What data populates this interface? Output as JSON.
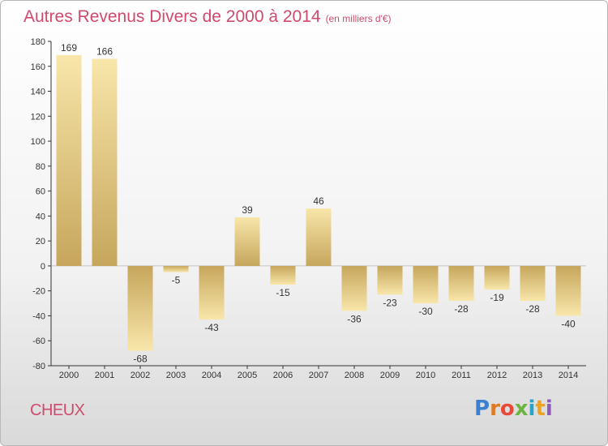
{
  "header": {
    "title": "Autres Revenus Divers de 2000 à 2014",
    "subtitle": "(en milliers d'€)"
  },
  "footer": {
    "city": "CHEUX",
    "logo_text": "Proxiti"
  },
  "chart_data": {
    "type": "bar",
    "title": "Autres Revenus Divers de 2000 à 2014",
    "subtitle": "(en milliers d'€)",
    "categories": [
      "2000",
      "2001",
      "2002",
      "2003",
      "2004",
      "2005",
      "2006",
      "2007",
      "2008",
      "2009",
      "2010",
      "2011",
      "2012",
      "2013",
      "2014"
    ],
    "values": [
      169,
      166,
      -68,
      -5,
      -43,
      39,
      -15,
      46,
      -36,
      -23,
      -30,
      -28,
      -19,
      -28,
      -40
    ],
    "ylim": [
      -80,
      180
    ],
    "yticks": [
      -80,
      -60,
      -40,
      -20,
      0,
      20,
      40,
      60,
      80,
      100,
      120,
      140,
      160,
      180
    ],
    "grid": false,
    "bar_colors": {
      "light": "#f7e3a4",
      "dark": "#c9a95e"
    }
  }
}
